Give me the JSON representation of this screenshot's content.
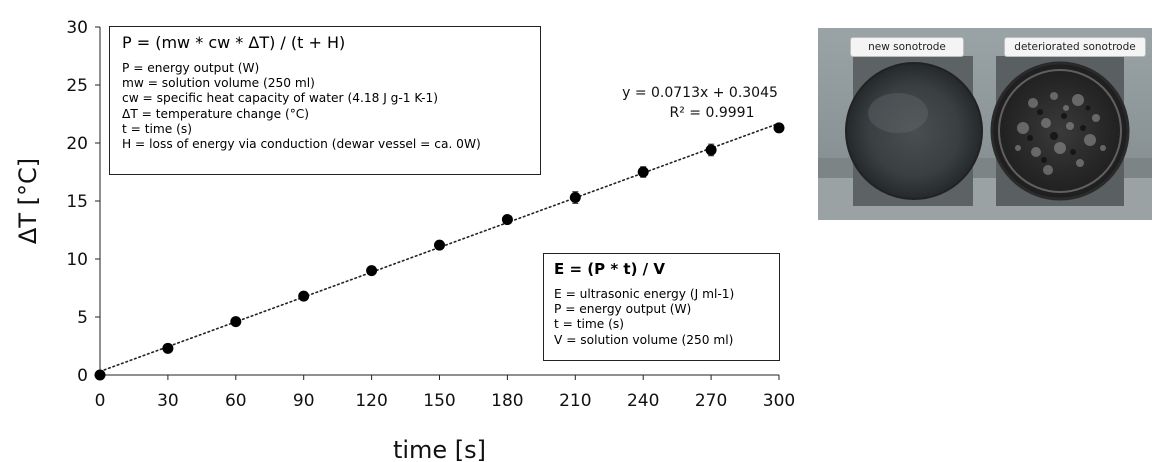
{
  "chart_data": {
    "type": "scatter",
    "x": [
      0,
      30,
      60,
      90,
      120,
      150,
      180,
      210,
      240,
      270,
      300
    ],
    "y": [
      0.0,
      2.3,
      4.6,
      6.8,
      9.0,
      11.2,
      13.4,
      15.3,
      17.5,
      19.4,
      21.3
    ],
    "error": [
      0,
      0,
      0,
      0,
      0,
      0,
      0,
      0.5,
      0.45,
      0.5,
      0
    ],
    "xlabel": "time [s]",
    "ylabel": "ΔT [°C]",
    "xlim": [
      0,
      300
    ],
    "ylim": [
      0,
      30
    ],
    "xticks": [
      "0",
      "30",
      "60",
      "90",
      "120",
      "150",
      "180",
      "210",
      "240",
      "270",
      "300"
    ],
    "yticks": [
      "0",
      "5",
      "10",
      "15",
      "20",
      "25",
      "30"
    ],
    "trendline": {
      "slope": 0.0713,
      "intercept": 0.3045,
      "style": "dotted",
      "equation": "y = 0.0713x + 0.3045",
      "r2": "R² = 0.9991"
    },
    "grid": false,
    "marker_color": "#000000"
  },
  "formula_box": {
    "main_formula": "P = (mw * cw * ΔT) / (t + H)",
    "lines": [
      "P = energy output (W)",
      "mw = solution volume (250 ml)",
      "cw = specific heat capacity of water (4.18 J g-1 K-1)",
      "ΔT = temperature change (°C)",
      "t = time (s)",
      "H = loss of energy via conduction (dewar vessel = ca. 0W)"
    ]
  },
  "energy_box": {
    "main_formula": "E = (P * t) / V",
    "lines": [
      "E = ultrasonic energy (J ml-1)",
      "P = energy output (W)",
      "t = time (s)",
      "V = solution volume (250 ml)"
    ]
  },
  "photo": {
    "label_left": "new sonotrode",
    "label_right": "deteriorated sonotrode"
  }
}
